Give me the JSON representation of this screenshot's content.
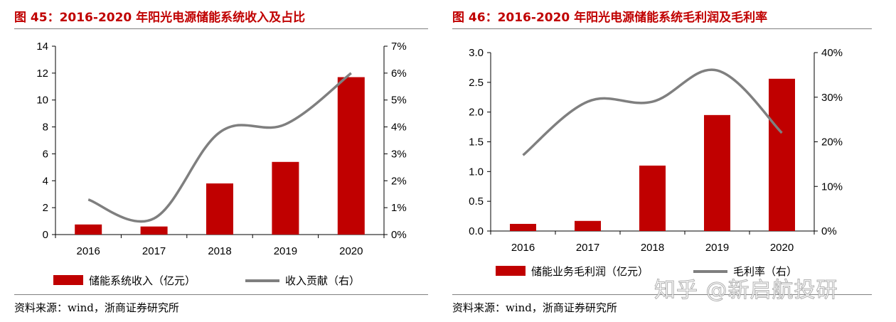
{
  "colors": {
    "title": "#c00000",
    "bar": "#c00000",
    "line": "#7f7f7f"
  },
  "left": {
    "title": "图 45：2016-2020 年阳光电源储能系统收入及占比",
    "source": "资料来源：wind，浙商证券研究所",
    "legend": {
      "bar_label": "储能系统收入（亿元）",
      "line_label": "收入贡献（右）"
    },
    "y_ticks": [
      "0",
      "2",
      "4",
      "6",
      "8",
      "10",
      "12",
      "14"
    ],
    "y2_ticks": [
      "0%",
      "1%",
      "2%",
      "3%",
      "4%",
      "5%",
      "6%",
      "7%"
    ]
  },
  "right": {
    "title": "图 46：2016-2020 年阳光电源储能系统毛利润及毛利率",
    "source": "资料来源：wind，浙商证券研究所",
    "legend": {
      "bar_label": "储能业务毛利润（亿元）",
      "line_label": "毛利率（右）"
    },
    "y_ticks": [
      "0.0",
      "0.5",
      "1.0",
      "1.5",
      "2.0",
      "2.5",
      "3.0"
    ],
    "y2_ticks": [
      "0%",
      "10%",
      "20%",
      "30%",
      "40%"
    ]
  },
  "watermark": "知乎 @新启航投研",
  "chart_data": [
    {
      "type": "bar",
      "categories": [
        "2016",
        "2017",
        "2018",
        "2019",
        "2020"
      ],
      "series": [
        {
          "name": "储能系统收入（亿元）",
          "type": "bar",
          "axis": "left",
          "values": [
            0.75,
            0.6,
            3.8,
            5.4,
            11.7
          ]
        },
        {
          "name": "收入贡献（右）",
          "type": "line",
          "axis": "right",
          "values": [
            1.3,
            0.6,
            3.8,
            4.1,
            6.0
          ]
        }
      ],
      "ylim": [
        0,
        14
      ],
      "y2lim": [
        0,
        7
      ],
      "y2_unit": "%"
    },
    {
      "type": "bar",
      "categories": [
        "2016",
        "2017",
        "2018",
        "2019",
        "2020"
      ],
      "series": [
        {
          "name": "储能业务毛利润（亿元）",
          "type": "bar",
          "axis": "left",
          "values": [
            0.12,
            0.17,
            1.1,
            1.95,
            2.56
          ]
        },
        {
          "name": "毛利率（右）",
          "type": "line",
          "axis": "right",
          "values": [
            17,
            29,
            29,
            36,
            22
          ]
        }
      ],
      "ylim": [
        0,
        3
      ],
      "y2lim": [
        0,
        40
      ],
      "y2_unit": "%"
    }
  ]
}
